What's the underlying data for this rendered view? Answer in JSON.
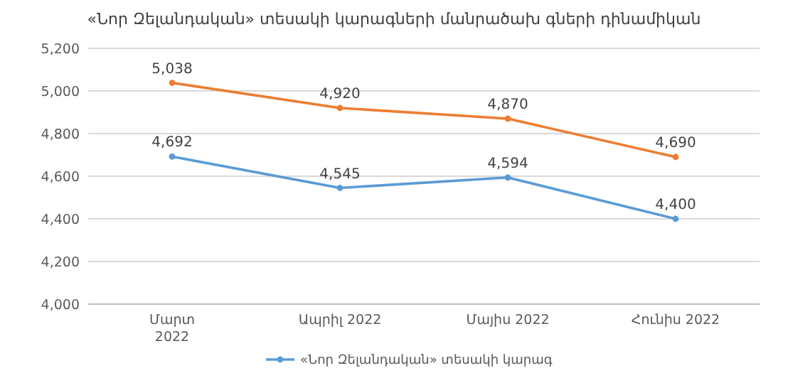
{
  "chart_data": {
    "type": "line",
    "title": "«Նոր Զելանդական» տեսակի կարագների մանրածախ գների դինամիկան",
    "categories": [
      "Մարտ 2022",
      "Ապրիլ 2022",
      "Մայիս 2022",
      "Հունիս 2022"
    ],
    "series": [
      {
        "name": "«Նոր Զելանդական» տեսակի կարագ",
        "color": "#5b9bd5",
        "values": [
          4692,
          4545,
          4594,
          4400
        ],
        "value_labels": [
          "4,692",
          "4,545",
          "4,594",
          "4,400"
        ]
      },
      {
        "color": "#ed7d31",
        "values": [
          5038,
          4920,
          4870,
          4690
        ],
        "value_labels": [
          "5,038",
          "4,920",
          "4,870",
          "4,690"
        ]
      }
    ],
    "ylim": [
      4000,
      5200
    ],
    "yticks": [
      {
        "value": 4000,
        "label": "4,000"
      },
      {
        "value": 4200,
        "label": "4,200"
      },
      {
        "value": 4400,
        "label": "4,400"
      },
      {
        "value": 4600,
        "label": "4,600"
      },
      {
        "value": 4800,
        "label": "4,800"
      },
      {
        "value": 5000,
        "label": "5,000"
      },
      {
        "value": 5200,
        "label": "5,200"
      }
    ],
    "grid": "y",
    "legend": "bottom",
    "marker": "circle",
    "line_style": "solid"
  }
}
